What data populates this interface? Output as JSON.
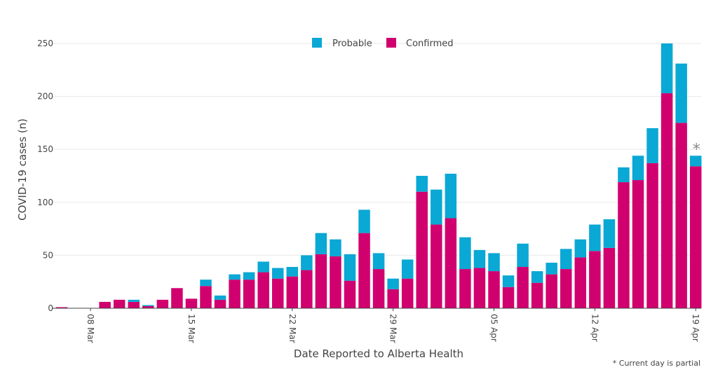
{
  "chart_data": {
    "type": "bar",
    "stacked": true,
    "xlabel": "Date Reported to Alberta Health",
    "ylabel": "COVID-19 cases (n)",
    "ylim": [
      0,
      250
    ],
    "yticks": [
      "0",
      "50",
      "100",
      "150",
      "200",
      "250"
    ],
    "grid": true,
    "legend_position": "top-center",
    "x_tick_labels": [
      "08 Mar",
      "15 Mar",
      "22 Mar",
      "29 Mar",
      "05 Apr",
      "12 Apr",
      "19 Apr"
    ],
    "x_tick_indices": [
      2,
      9,
      16,
      23,
      30,
      37,
      44
    ],
    "categories": [
      "06 Mar",
      "07 Mar",
      "08 Mar",
      "09 Mar",
      "10 Mar",
      "11 Mar",
      "12 Mar",
      "13 Mar",
      "14 Mar",
      "15 Mar",
      "16 Mar",
      "17 Mar",
      "18 Mar",
      "19 Mar",
      "20 Mar",
      "21 Mar",
      "22 Mar",
      "23 Mar",
      "24 Mar",
      "25 Mar",
      "26 Mar",
      "27 Mar",
      "28 Mar",
      "29 Mar",
      "30 Mar",
      "31 Mar",
      "01 Apr",
      "02 Apr",
      "03 Apr",
      "04 Apr",
      "05 Apr",
      "06 Apr",
      "07 Apr",
      "08 Apr",
      "09 Apr",
      "10 Apr",
      "11 Apr",
      "12 Apr",
      "13 Apr",
      "14 Apr",
      "15 Apr",
      "16 Apr",
      "17 Apr",
      "18 Apr",
      "19 Apr"
    ],
    "series": [
      {
        "name": "Confirmed",
        "color": "#d1006f",
        "values": [
          1,
          0,
          0,
          6,
          8,
          6,
          2,
          8,
          19,
          9,
          21,
          8,
          27,
          27,
          34,
          28,
          30,
          36,
          51,
          49,
          26,
          71,
          37,
          18,
          28,
          110,
          79,
          85,
          37,
          38,
          35,
          20,
          39,
          24,
          32,
          37,
          48,
          54,
          57,
          119,
          121,
          137,
          203,
          175,
          134
        ]
      },
      {
        "name": "Probable",
        "color": "#0aa8d4",
        "values": [
          0,
          0,
          0,
          0,
          0,
          2,
          1,
          0,
          0,
          0,
          6,
          4,
          5,
          7,
          10,
          10,
          9,
          14,
          20,
          16,
          25,
          22,
          15,
          10,
          18,
          15,
          33,
          42,
          30,
          17,
          17,
          11,
          22,
          11,
          11,
          19,
          17,
          25,
          27,
          14,
          23,
          33,
          47,
          56,
          10
        ]
      }
    ],
    "legend": [
      "Probable",
      "Confirmed"
    ],
    "partial_marker": "*",
    "note": "* Current day is partial"
  }
}
